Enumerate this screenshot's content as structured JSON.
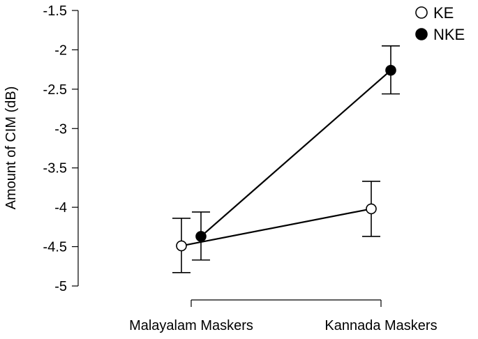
{
  "chart_data": {
    "type": "line",
    "title": "",
    "ylabel": "Amount of CIM (dB)",
    "xlabel": "",
    "categories": [
      "Malayalam Maskers",
      "Kannada Maskers"
    ],
    "ylim": [
      -5,
      -1.5
    ],
    "yticks": [
      -1.5,
      -2,
      -2.5,
      -3,
      -3.5,
      -4,
      -4.5,
      -5
    ],
    "ytick_labels": [
      "-1.5",
      "-2",
      "-2.5",
      "-3",
      "-3.5",
      "-4",
      "-4.5",
      "-5"
    ],
    "grid": false,
    "legend_position": "top-right",
    "series": [
      {
        "name": "KE",
        "marker": "open-circle",
        "color": "#000000",
        "values": [
          -4.49,
          -4.02
        ],
        "error_low": [
          -4.83,
          -4.37
        ],
        "error_high": [
          -4.14,
          -3.67
        ]
      },
      {
        "name": "NKE",
        "marker": "filled-circle",
        "color": "#000000",
        "values": [
          -4.37,
          -2.26
        ],
        "error_low": [
          -4.67,
          -2.56
        ],
        "error_high": [
          -4.06,
          -1.95
        ]
      }
    ]
  }
}
